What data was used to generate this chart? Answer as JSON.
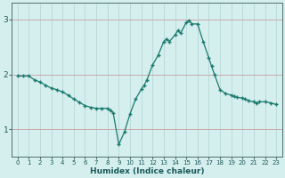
{
  "title": "",
  "xlabel": "Humidex (Indice chaleur)",
  "ylabel": "",
  "background_color": "#d5eeee",
  "plot_bg_color": "#d5eeee",
  "line_color": "#1a7a6e",
  "marker_color": "#1a7a6e",
  "vgrid_color": "#b8d8d8",
  "hgrid_color": "#c8a0a0",
  "axis_color": "#507070",
  "xlim": [
    -0.5,
    23.5
  ],
  "ylim": [
    0.5,
    3.3
  ],
  "yticks": [
    1,
    2,
    3
  ],
  "xtick_labels": [
    "0",
    "1",
    "2",
    "3",
    "4",
    "5",
    "6",
    "7",
    "8",
    "9",
    "10",
    "11",
    "12",
    "13",
    "14",
    "15",
    "16",
    "17",
    "18",
    "19",
    "20",
    "21",
    "22",
    "23"
  ],
  "x": [
    0,
    0.5,
    1,
    1.5,
    2,
    2.5,
    3,
    3.5,
    4,
    4.5,
    5,
    5.5,
    6,
    6.5,
    7,
    7.5,
    8,
    8.25,
    8.5,
    9,
    9.5,
    10,
    10.5,
    11,
    11.25,
    11.5,
    12,
    12.5,
    13,
    13.25,
    13.5,
    14,
    14.25,
    14.5,
    15,
    15.25,
    15.5,
    16,
    16.5,
    17,
    17.25,
    17.5,
    18,
    18.5,
    19,
    19.25,
    19.5,
    20,
    20.25,
    20.5,
    21,
    21.25,
    21.5,
    22,
    22.5,
    23
  ],
  "y": [
    1.97,
    1.97,
    1.97,
    1.9,
    1.86,
    1.8,
    1.75,
    1.72,
    1.68,
    1.62,
    1.55,
    1.49,
    1.43,
    1.4,
    1.38,
    1.38,
    1.38,
    1.35,
    1.3,
    0.72,
    0.95,
    1.28,
    1.55,
    1.73,
    1.8,
    1.9,
    2.17,
    2.35,
    2.6,
    2.65,
    2.6,
    2.72,
    2.8,
    2.75,
    2.95,
    2.98,
    2.92,
    2.92,
    2.6,
    2.3,
    2.15,
    2.0,
    1.72,
    1.65,
    1.62,
    1.6,
    1.58,
    1.57,
    1.55,
    1.52,
    1.5,
    1.48,
    1.5,
    1.5,
    1.48,
    1.45
  ]
}
